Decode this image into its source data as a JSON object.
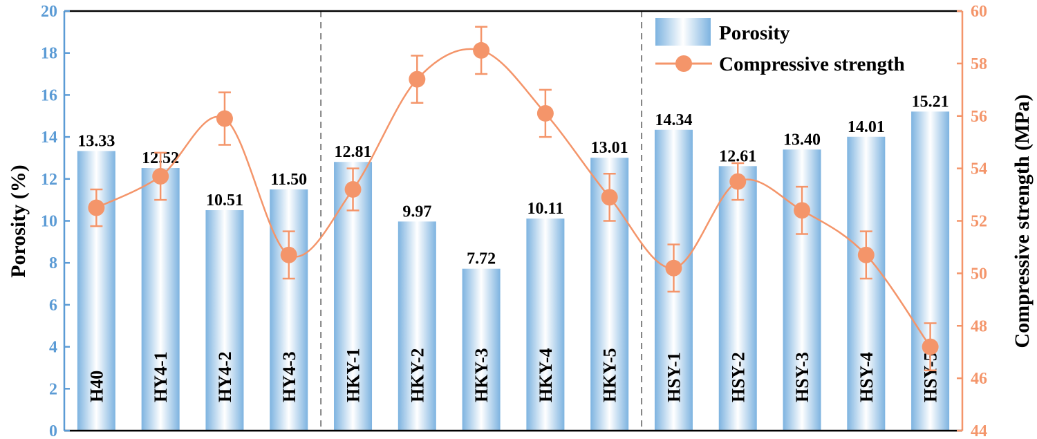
{
  "chart_data": {
    "type": "bar",
    "categories": [
      "H40",
      "HY4-1",
      "HY4-2",
      "HY4-3",
      "HKY-1",
      "HKY-2",
      "HKY-3",
      "HKY-4",
      "HKY-5",
      "HSY-1",
      "HSY-2",
      "HSY-3",
      "HSY-4",
      "HSY-5"
    ],
    "groups": [
      [
        "H40",
        "HY4-1",
        "HY4-2",
        "HY4-3"
      ],
      [
        "HKY-1",
        "HKY-2",
        "HKY-3",
        "HKY-4",
        "HKY-5"
      ],
      [
        "HSY-1",
        "HSY-2",
        "HSY-3",
        "HSY-4",
        "HSY-5"
      ]
    ],
    "series": [
      {
        "name": "Porosity",
        "type": "bar",
        "axis": "left",
        "values": [
          13.33,
          12.52,
          10.51,
          11.5,
          12.81,
          9.97,
          7.72,
          10.11,
          13.01,
          14.34,
          12.61,
          13.4,
          14.01,
          15.21
        ],
        "labels": [
          "13.33",
          "12.52",
          "10.51",
          "11.50",
          "12.81",
          "9.97",
          "7.72",
          "10.11",
          "13.01",
          "14.34",
          "12.61",
          "13.40",
          "14.01",
          "15.21"
        ]
      },
      {
        "name": "Compressive strength",
        "type": "line",
        "axis": "right",
        "values": [
          52.5,
          53.7,
          55.9,
          50.7,
          53.2,
          57.4,
          58.5,
          56.1,
          52.9,
          50.2,
          53.5,
          52.4,
          50.7,
          47.2
        ],
        "error": [
          0.7,
          0.9,
          1.0,
          0.9,
          0.8,
          0.9,
          0.9,
          0.9,
          0.9,
          0.9,
          0.7,
          0.9,
          0.9,
          0.9
        ]
      }
    ],
    "ylabel": "Porosity (%)",
    "ylabel_right": "Compressive strength (MPa)",
    "ylim": [
      0,
      20
    ],
    "yticks": [
      "0",
      "2",
      "4",
      "6",
      "8",
      "10",
      "12",
      "14",
      "16",
      "18",
      "20"
    ],
    "ylim_right": [
      44,
      60
    ],
    "yticks_right": [
      "44",
      "46",
      "48",
      "50",
      "52",
      "54",
      "56",
      "58",
      "60"
    ],
    "legend_position": "top-right",
    "grid": false,
    "colors": {
      "bar_edge": "#7db3e0",
      "bar_center": "#ffffff",
      "line": "#f4956a",
      "left_axis": "#5b9bd5",
      "right_axis": "#f4956a",
      "divider": "#808080"
    }
  }
}
